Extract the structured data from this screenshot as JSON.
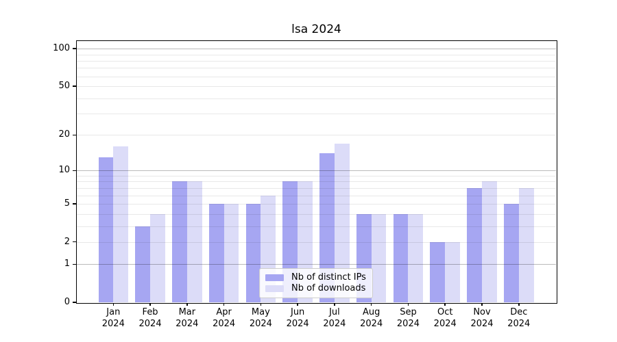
{
  "title": "lsa 2024",
  "colors": {
    "bar_distinct_ips": "#a6a6f2",
    "bar_downloads": "#dcdcf8",
    "grid_major": "rgba(0,0,0,0.27)",
    "grid_minor": "rgba(0,0,0,0.09)",
    "axis": "#000000",
    "legend_border": "#cccccc",
    "text": "#000000"
  },
  "chart_data": {
    "type": "bar",
    "title": "lsa 2024",
    "yscale": "log1p",
    "ylim": [
      0,
      115
    ],
    "grid": "both",
    "legend_position": "bottom-center",
    "months": [
      "Jan",
      "Feb",
      "Mar",
      "Apr",
      "May",
      "Jun",
      "Jul",
      "Aug",
      "Sep",
      "Oct",
      "Nov",
      "Dec"
    ],
    "year_suffix": "2024",
    "categories": [
      "Jan 2024",
      "Feb 2024",
      "Mar 2024",
      "Apr 2024",
      "May 2024",
      "Jun 2024",
      "Jul 2024",
      "Aug 2024",
      "Sep 2024",
      "Oct 2024",
      "Nov 2024",
      "Dec 2024"
    ],
    "series": [
      {
        "name": "Nb of distinct IPs",
        "color": "#a6a6f2",
        "values": [
          13,
          3,
          8,
          5,
          5,
          8,
          14,
          4,
          4,
          2,
          7,
          5
        ]
      },
      {
        "name": "Nb of downloads",
        "color": "#dcdcf8",
        "values": [
          16,
          4,
          8,
          5,
          6,
          8,
          17,
          4,
          4,
          2,
          8,
          7
        ]
      }
    ],
    "ytick_values": [
      100,
      50,
      20,
      10,
      5,
      2,
      1,
      0
    ],
    "ytick_labels": [
      "100",
      "50",
      "20",
      "10",
      "5",
      "2",
      "1",
      "0"
    ],
    "grid_major_values": [
      1,
      10,
      100
    ],
    "grid_minor_values": [
      2,
      3,
      4,
      5,
      6,
      7,
      8,
      9,
      20,
      30,
      40,
      50,
      60,
      70,
      80,
      90
    ]
  },
  "legend": {
    "items": [
      {
        "label": "Nb of distinct IPs"
      },
      {
        "label": "Nb of downloads"
      }
    ]
  }
}
